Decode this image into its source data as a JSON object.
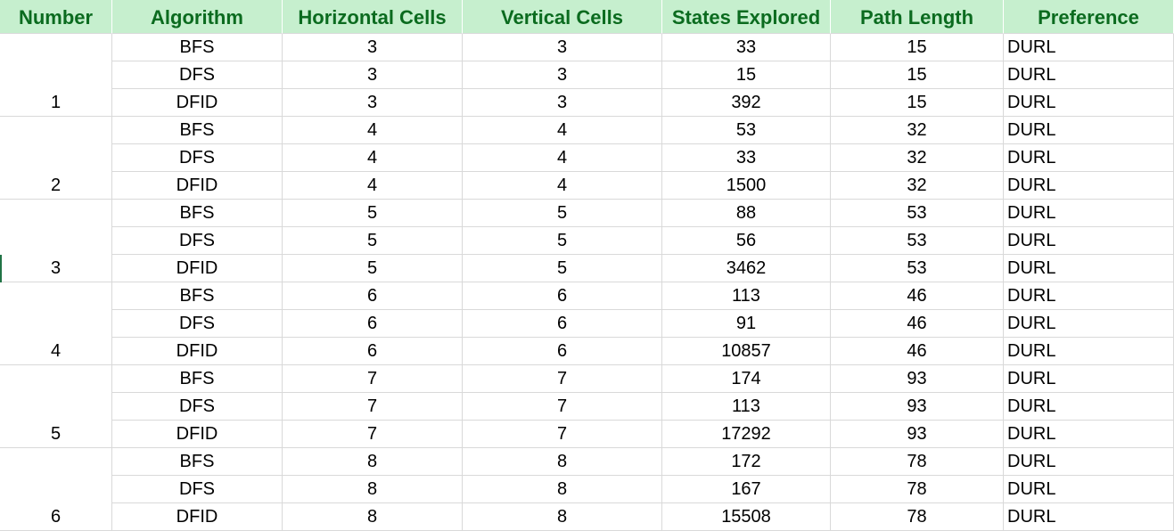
{
  "columns": [
    "Number",
    "Algorithm",
    "Horizontal Cells",
    "Vertical Cells",
    "States Explored",
    "Path Length",
    "Preference"
  ],
  "groups": [
    {
      "number": "1",
      "rows": [
        {
          "algorithm": "BFS",
          "horizontal": "3",
          "vertical": "3",
          "states": "33",
          "path": "15",
          "pref": "DURL"
        },
        {
          "algorithm": "DFS",
          "horizontal": "3",
          "vertical": "3",
          "states": "15",
          "path": "15",
          "pref": "DURL"
        },
        {
          "algorithm": "DFID",
          "horizontal": "3",
          "vertical": "3",
          "states": "392",
          "path": "15",
          "pref": "DURL"
        }
      ]
    },
    {
      "number": "2",
      "rows": [
        {
          "algorithm": "BFS",
          "horizontal": "4",
          "vertical": "4",
          "states": "53",
          "path": "32",
          "pref": "DURL"
        },
        {
          "algorithm": "DFS",
          "horizontal": "4",
          "vertical": "4",
          "states": "33",
          "path": "32",
          "pref": "DURL"
        },
        {
          "algorithm": "DFID",
          "horizontal": "4",
          "vertical": "4",
          "states": "1500",
          "path": "32",
          "pref": "DURL"
        }
      ]
    },
    {
      "number": "3",
      "rows": [
        {
          "algorithm": "BFS",
          "horizontal": "5",
          "vertical": "5",
          "states": "88",
          "path": "53",
          "pref": "DURL"
        },
        {
          "algorithm": "DFS",
          "horizontal": "5",
          "vertical": "5",
          "states": "56",
          "path": "53",
          "pref": "DURL"
        },
        {
          "algorithm": "DFID",
          "horizontal": "5",
          "vertical": "5",
          "states": "3462",
          "path": "53",
          "pref": "DURL"
        }
      ]
    },
    {
      "number": "4",
      "rows": [
        {
          "algorithm": "BFS",
          "horizontal": "6",
          "vertical": "6",
          "states": "113",
          "path": "46",
          "pref": "DURL"
        },
        {
          "algorithm": "DFS",
          "horizontal": "6",
          "vertical": "6",
          "states": "91",
          "path": "46",
          "pref": "DURL"
        },
        {
          "algorithm": "DFID",
          "horizontal": "6",
          "vertical": "6",
          "states": "10857",
          "path": "46",
          "pref": "DURL"
        }
      ]
    },
    {
      "number": "5",
      "rows": [
        {
          "algorithm": "BFS",
          "horizontal": "7",
          "vertical": "7",
          "states": "174",
          "path": "93",
          "pref": "DURL"
        },
        {
          "algorithm": "DFS",
          "horizontal": "7",
          "vertical": "7",
          "states": "113",
          "path": "93",
          "pref": "DURL"
        },
        {
          "algorithm": "DFID",
          "horizontal": "7",
          "vertical": "7",
          "states": "17292",
          "path": "93",
          "pref": "DURL"
        }
      ]
    },
    {
      "number": "6",
      "rows": [
        {
          "algorithm": "BFS",
          "horizontal": "8",
          "vertical": "8",
          "states": "172",
          "path": "78",
          "pref": "DURL"
        },
        {
          "algorithm": "DFS",
          "horizontal": "8",
          "vertical": "8",
          "states": "167",
          "path": "78",
          "pref": "DURL"
        },
        {
          "algorithm": "DFID",
          "horizontal": "8",
          "vertical": "8",
          "states": "15508",
          "path": "78",
          "pref": "DURL"
        }
      ]
    }
  ],
  "colors": {
    "header_fill": "#c6efce",
    "header_text": "#0b6b1f",
    "gridline": "#d9d9d9",
    "selection": "#217346"
  }
}
